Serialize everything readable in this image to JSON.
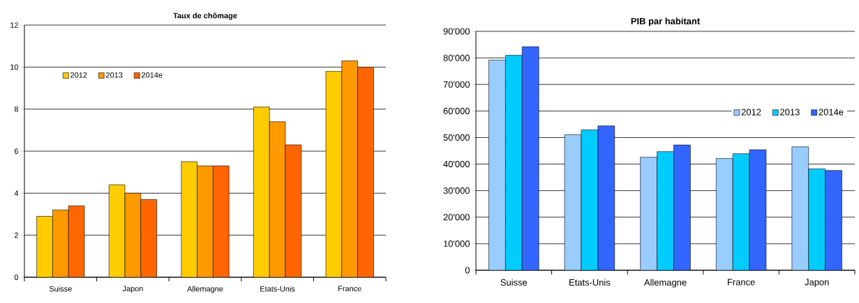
{
  "chart_data": [
    {
      "type": "bar",
      "title": "Taux de chômage",
      "categories": [
        "Suisse",
        "Japon",
        "Allemagne",
        "Etats-Unis",
        "France"
      ],
      "series": [
        {
          "name": "2012",
          "color": "#ffcc00",
          "values": [
            2.9,
            4.4,
            5.5,
            8.1,
            9.8
          ]
        },
        {
          "name": "2013",
          "color": "#ff9900",
          "values": [
            3.2,
            4.0,
            5.3,
            7.4,
            10.3
          ]
        },
        {
          "name": "2014e",
          "color": "#ff6600",
          "values": [
            3.4,
            3.7,
            5.3,
            6.3,
            10.0
          ]
        }
      ],
      "ylim": [
        0,
        12
      ],
      "yticks": [
        0,
        2,
        4,
        6,
        8,
        10,
        12
      ],
      "grid": "y",
      "legend": "top left"
    },
    {
      "type": "bar",
      "title": "PIB par habitant",
      "categories": [
        "Suisse",
        "Etats-Unis",
        "Allemagne",
        "France",
        "Japon"
      ],
      "series": [
        {
          "name": "2012",
          "color": "#99ccff",
          "values": [
            79200,
            51100,
            42600,
            42100,
            46500
          ]
        },
        {
          "name": "2013",
          "color": "#00ccff",
          "values": [
            81000,
            52900,
            44700,
            43900,
            38200
          ]
        },
        {
          "name": "2014e",
          "color": "#3366ff",
          "values": [
            84200,
            54400,
            47200,
            45400,
            37600
          ]
        }
      ],
      "ylim": [
        0,
        90000
      ],
      "yticks": [
        0,
        {
          "value": 10000,
          "label": "10'000"
        },
        {
          "value": 20000,
          "label": "20'000"
        },
        {
          "value": 30000,
          "label": "30'000"
        },
        {
          "value": 40000,
          "label": "40'000"
        },
        {
          "value": 50000,
          "label": "50'000"
        },
        {
          "value": 60000,
          "label": "60'000"
        },
        {
          "value": 70000,
          "label": "70'000"
        },
        {
          "value": 80000,
          "label": "80'000"
        },
        {
          "value": 90000,
          "label": "90'000"
        }
      ],
      "grid": "y",
      "legend": "right"
    }
  ]
}
